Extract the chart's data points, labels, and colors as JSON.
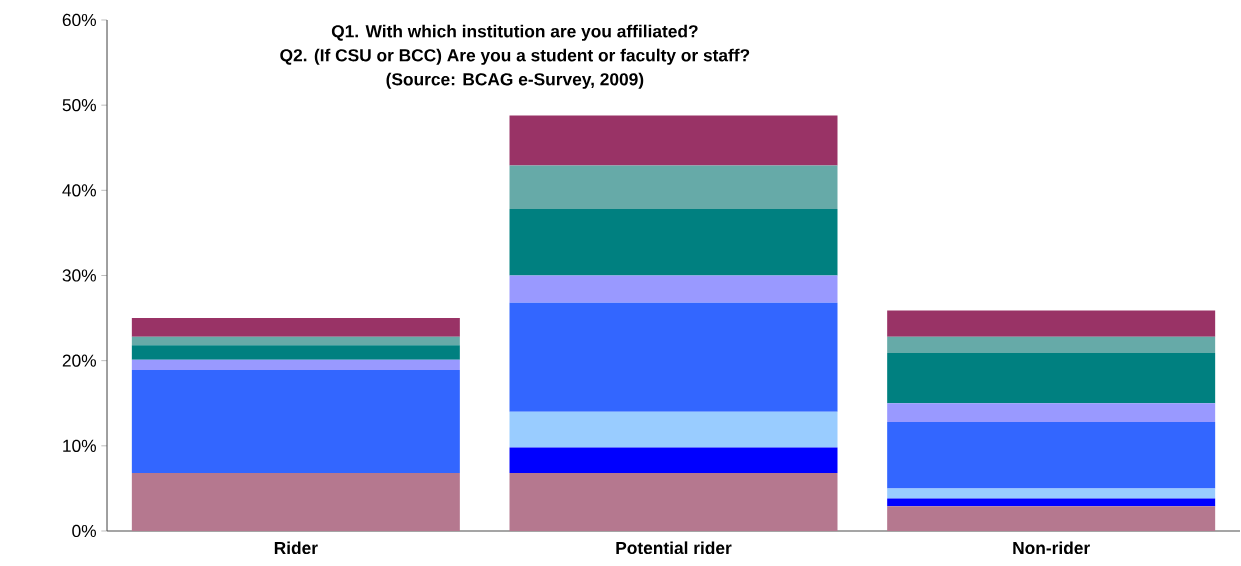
{
  "chart_data": {
    "type": "bar",
    "stacked": true,
    "title": "Q1. With which institution are you affiliated?",
    "subtitle": "Q2. (If CSU or BCC) Are you a student or faculty or staff?",
    "annotations": [
      "(Source: BCAG e-Survey, 2009)"
    ],
    "categories": [
      "Rider",
      "Potential rider",
      "Non-rider"
    ],
    "series": [
      {
        "color": "#b5788f",
        "values": [
          6.8,
          6.8,
          2.9
        ]
      },
      {
        "color": "#0000ff",
        "values": [
          0,
          3.0,
          0.9
        ]
      },
      {
        "color": "#99ccff",
        "values": [
          0,
          4.2,
          1.2
        ]
      },
      {
        "color": "#3366ff",
        "values": [
          12.1,
          12.8,
          7.8
        ]
      },
      {
        "color": "#9999ff",
        "values": [
          1.2,
          3.2,
          2.2
        ]
      },
      {
        "color": "#008080",
        "values": [
          1.7,
          7.8,
          5.9
        ]
      },
      {
        "color": "#66aaa8",
        "values": [
          1.0,
          5.1,
          1.9
        ]
      },
      {
        "color": "#993366",
        "values": [
          2.2,
          5.9,
          3.1
        ]
      }
    ],
    "ylim": [
      0,
      60
    ],
    "yticks": [
      {
        "value": 0,
        "label": "0%"
      },
      {
        "value": 10,
        "label": "10%"
      },
      {
        "value": 20,
        "label": "20%"
      },
      {
        "value": 30,
        "label": "30%"
      },
      {
        "value": 40,
        "label": "40%"
      },
      {
        "value": 50,
        "label": "50%"
      },
      {
        "value": 60,
        "label": "60%"
      }
    ],
    "grid": false
  }
}
